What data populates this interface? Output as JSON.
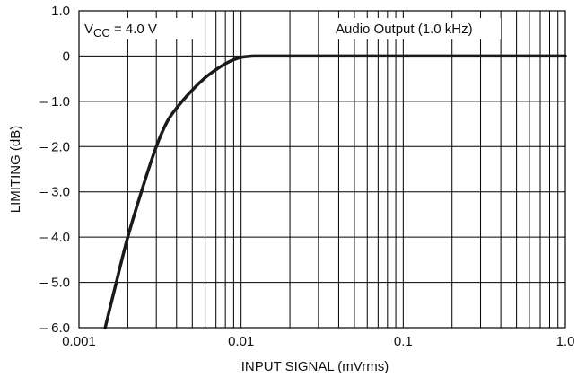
{
  "chart_data": {
    "type": "line",
    "title": "",
    "xlabel": "INPUT SIGNAL (mVrms)",
    "ylabel": "LIMITING (dB)",
    "xscale": "log",
    "xlim": [
      0.001,
      1.0
    ],
    "ylim": [
      -6.0,
      1.0
    ],
    "grid": true,
    "x_ticks": [
      {
        "value": 0.001,
        "label": "0.001"
      },
      {
        "value": 0.01,
        "label": "0.01"
      },
      {
        "value": 0.1,
        "label": "0.1"
      },
      {
        "value": 1.0,
        "label": "1.0"
      }
    ],
    "y_ticks": [
      {
        "value": 1.0,
        "label": "1.0"
      },
      {
        "value": 0,
        "label": "0"
      },
      {
        "value": -1.0,
        "label": "– 1.0"
      },
      {
        "value": -2.0,
        "label": "– 2.0"
      },
      {
        "value": -3.0,
        "label": "– 3.0"
      },
      {
        "value": -4.0,
        "label": "– 4.0"
      },
      {
        "value": -5.0,
        "label": "– 5.0"
      },
      {
        "value": -6.0,
        "label": "– 6.0"
      }
    ],
    "annotations": {
      "vcc_main": "V",
      "vcc_sub": "CC",
      "vcc_rest": " = 4.0 V",
      "condition": "Audio Output (1.0 kHz)"
    },
    "series": [
      {
        "x": [
          0.00145,
          0.0017,
          0.002,
          0.0025,
          0.003,
          0.0035,
          0.004,
          0.005,
          0.006,
          0.007,
          0.008,
          0.009,
          0.01,
          0.011,
          0.012,
          0.015,
          0.02,
          0.05,
          0.1,
          0.5,
          1.0
        ],
        "y": [
          -6.0,
          -5.0,
          -4.0,
          -2.85,
          -2.0,
          -1.45,
          -1.15,
          -0.75,
          -0.48,
          -0.3,
          -0.17,
          -0.08,
          -0.03,
          -0.01,
          0.0,
          0.0,
          0.0,
          0.0,
          0.0,
          0.0,
          0.0
        ]
      }
    ],
    "line_color": "#1a1a1a",
    "grid_color": "#000000"
  }
}
